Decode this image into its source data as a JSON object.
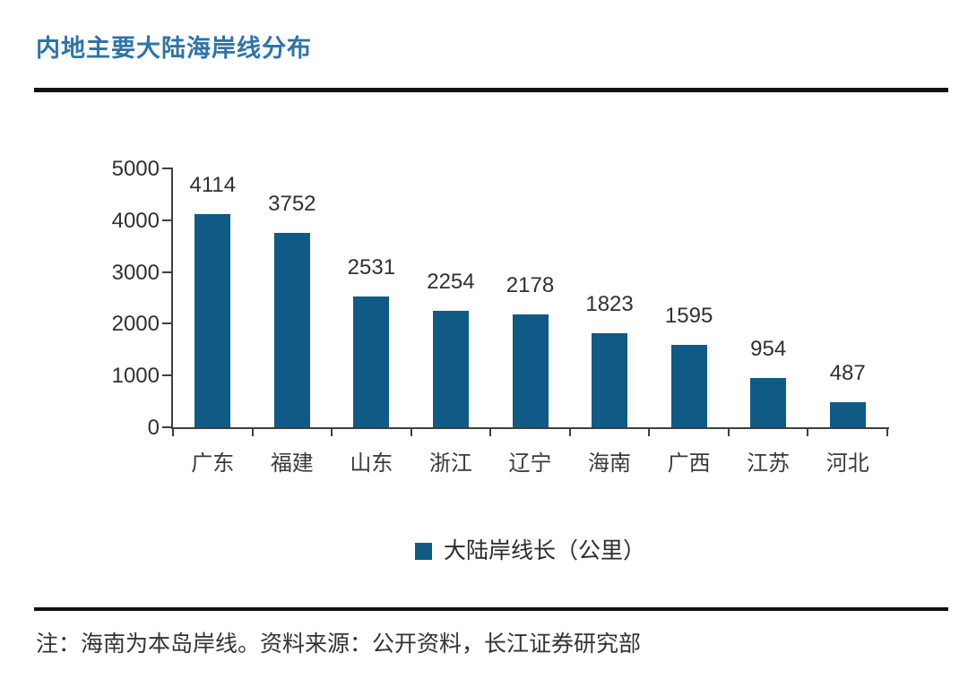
{
  "header": {
    "title": "内地主要大陆海岸线分布"
  },
  "chart_data": {
    "type": "bar",
    "title": "内地主要大陆海岸线分布",
    "categories": [
      "广东",
      "福建",
      "山东",
      "浙江",
      "辽宁",
      "海南",
      "广西",
      "江苏",
      "河北"
    ],
    "values": [
      4114,
      3752,
      2531,
      2254,
      2178,
      1823,
      1595,
      954,
      487
    ],
    "series_name": "大陆岸线长（公里）",
    "xlabel": "",
    "ylabel": "",
    "ylim": [
      0,
      5000
    ],
    "yticks": [
      0,
      1000,
      2000,
      3000,
      4000,
      5000
    ],
    "grid": false,
    "data_labels": true,
    "legend_position": "bottom",
    "bar_color": "#0F5B85"
  },
  "footer": {
    "note": "注：海南为本岛岸线。资料来源：公开资料，长江证券研究部"
  },
  "colors": {
    "title_blue": "#2E74A8",
    "bar_blue": "#0F5B85",
    "axis_gray": "#3F3F3F",
    "divider_black": "#121212",
    "label_dark": "#303030"
  }
}
